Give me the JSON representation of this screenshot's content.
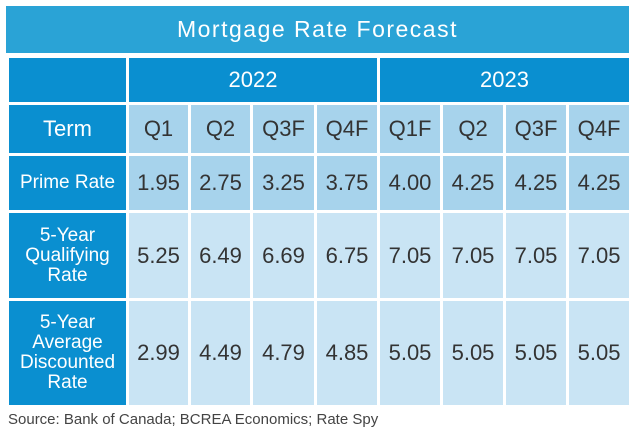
{
  "title": "Mortgage Rate Forecast",
  "years": [
    "2022",
    "2023"
  ],
  "term_label": "Term",
  "quarters": [
    "Q1",
    "Q2",
    "Q3F",
    "Q4F",
    "Q1F",
    "Q2",
    "Q3F",
    "Q4F"
  ],
  "rows": [
    {
      "label": "Prime Rate",
      "values": [
        "1.95",
        "2.75",
        "3.25",
        "3.75",
        "4.00",
        "4.25",
        "4.25",
        "4.25"
      ]
    },
    {
      "label": "5-Year Qualifying Rate",
      "values": [
        "5.25",
        "6.49",
        "6.69",
        "6.75",
        "7.05",
        "7.05",
        "7.05",
        "7.05"
      ]
    },
    {
      "label": "5-Year Average Discounted Rate",
      "values": [
        "2.99",
        "4.49",
        "4.79",
        "4.85",
        "5.05",
        "5.05",
        "5.05",
        "5.05"
      ]
    }
  ],
  "source": "Source: Bank of Canada; BCREA Economics; Rate Spy",
  "colors": {
    "header_blue": "#0a8fd0",
    "title_blue": "#2aa3d6",
    "cell_blue": "#a7d3ec",
    "cell_light": "#c9e4f4"
  }
}
